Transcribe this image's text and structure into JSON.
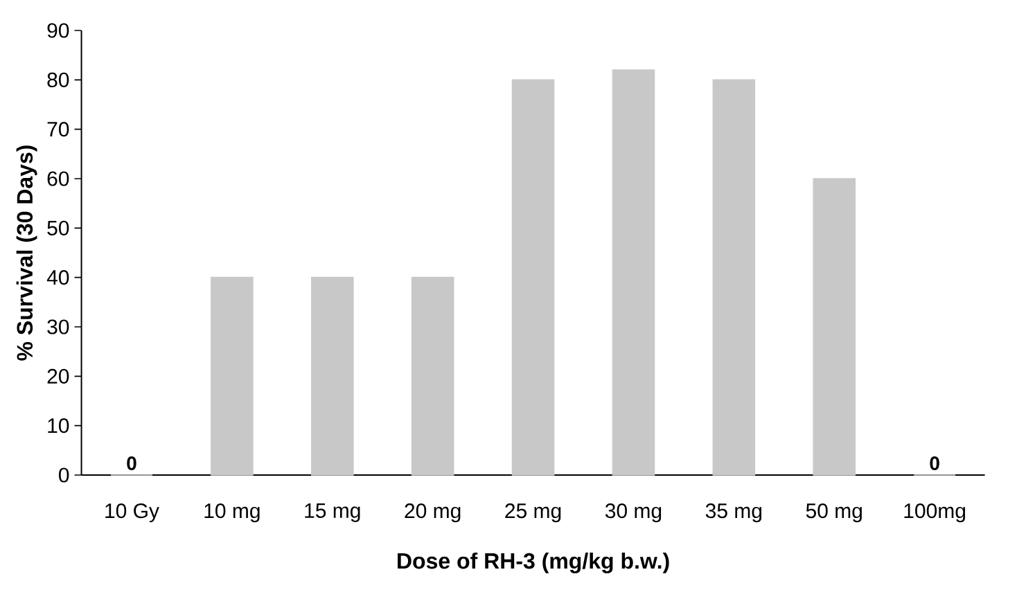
{
  "chart_data": {
    "type": "bar",
    "xlabel": "Dose of RH-3 (mg/kg b.w.)",
    "ylabel": "% Survival (30 Days)",
    "categories": [
      "10 Gy",
      "10 mg",
      "15 mg",
      "20 mg",
      "25 mg",
      "30 mg",
      "35 mg",
      "50 mg",
      "100mg"
    ],
    "values": [
      0,
      40,
      40,
      40,
      80,
      82,
      80,
      60,
      0
    ],
    "value_labels": [
      "0",
      null,
      null,
      null,
      null,
      null,
      null,
      null,
      "0"
    ],
    "color": "#c8c8c8",
    "ylim": [
      0,
      90
    ],
    "yticks": [
      0,
      10,
      20,
      30,
      40,
      50,
      60,
      70,
      80,
      90
    ],
    "grid": false
  }
}
